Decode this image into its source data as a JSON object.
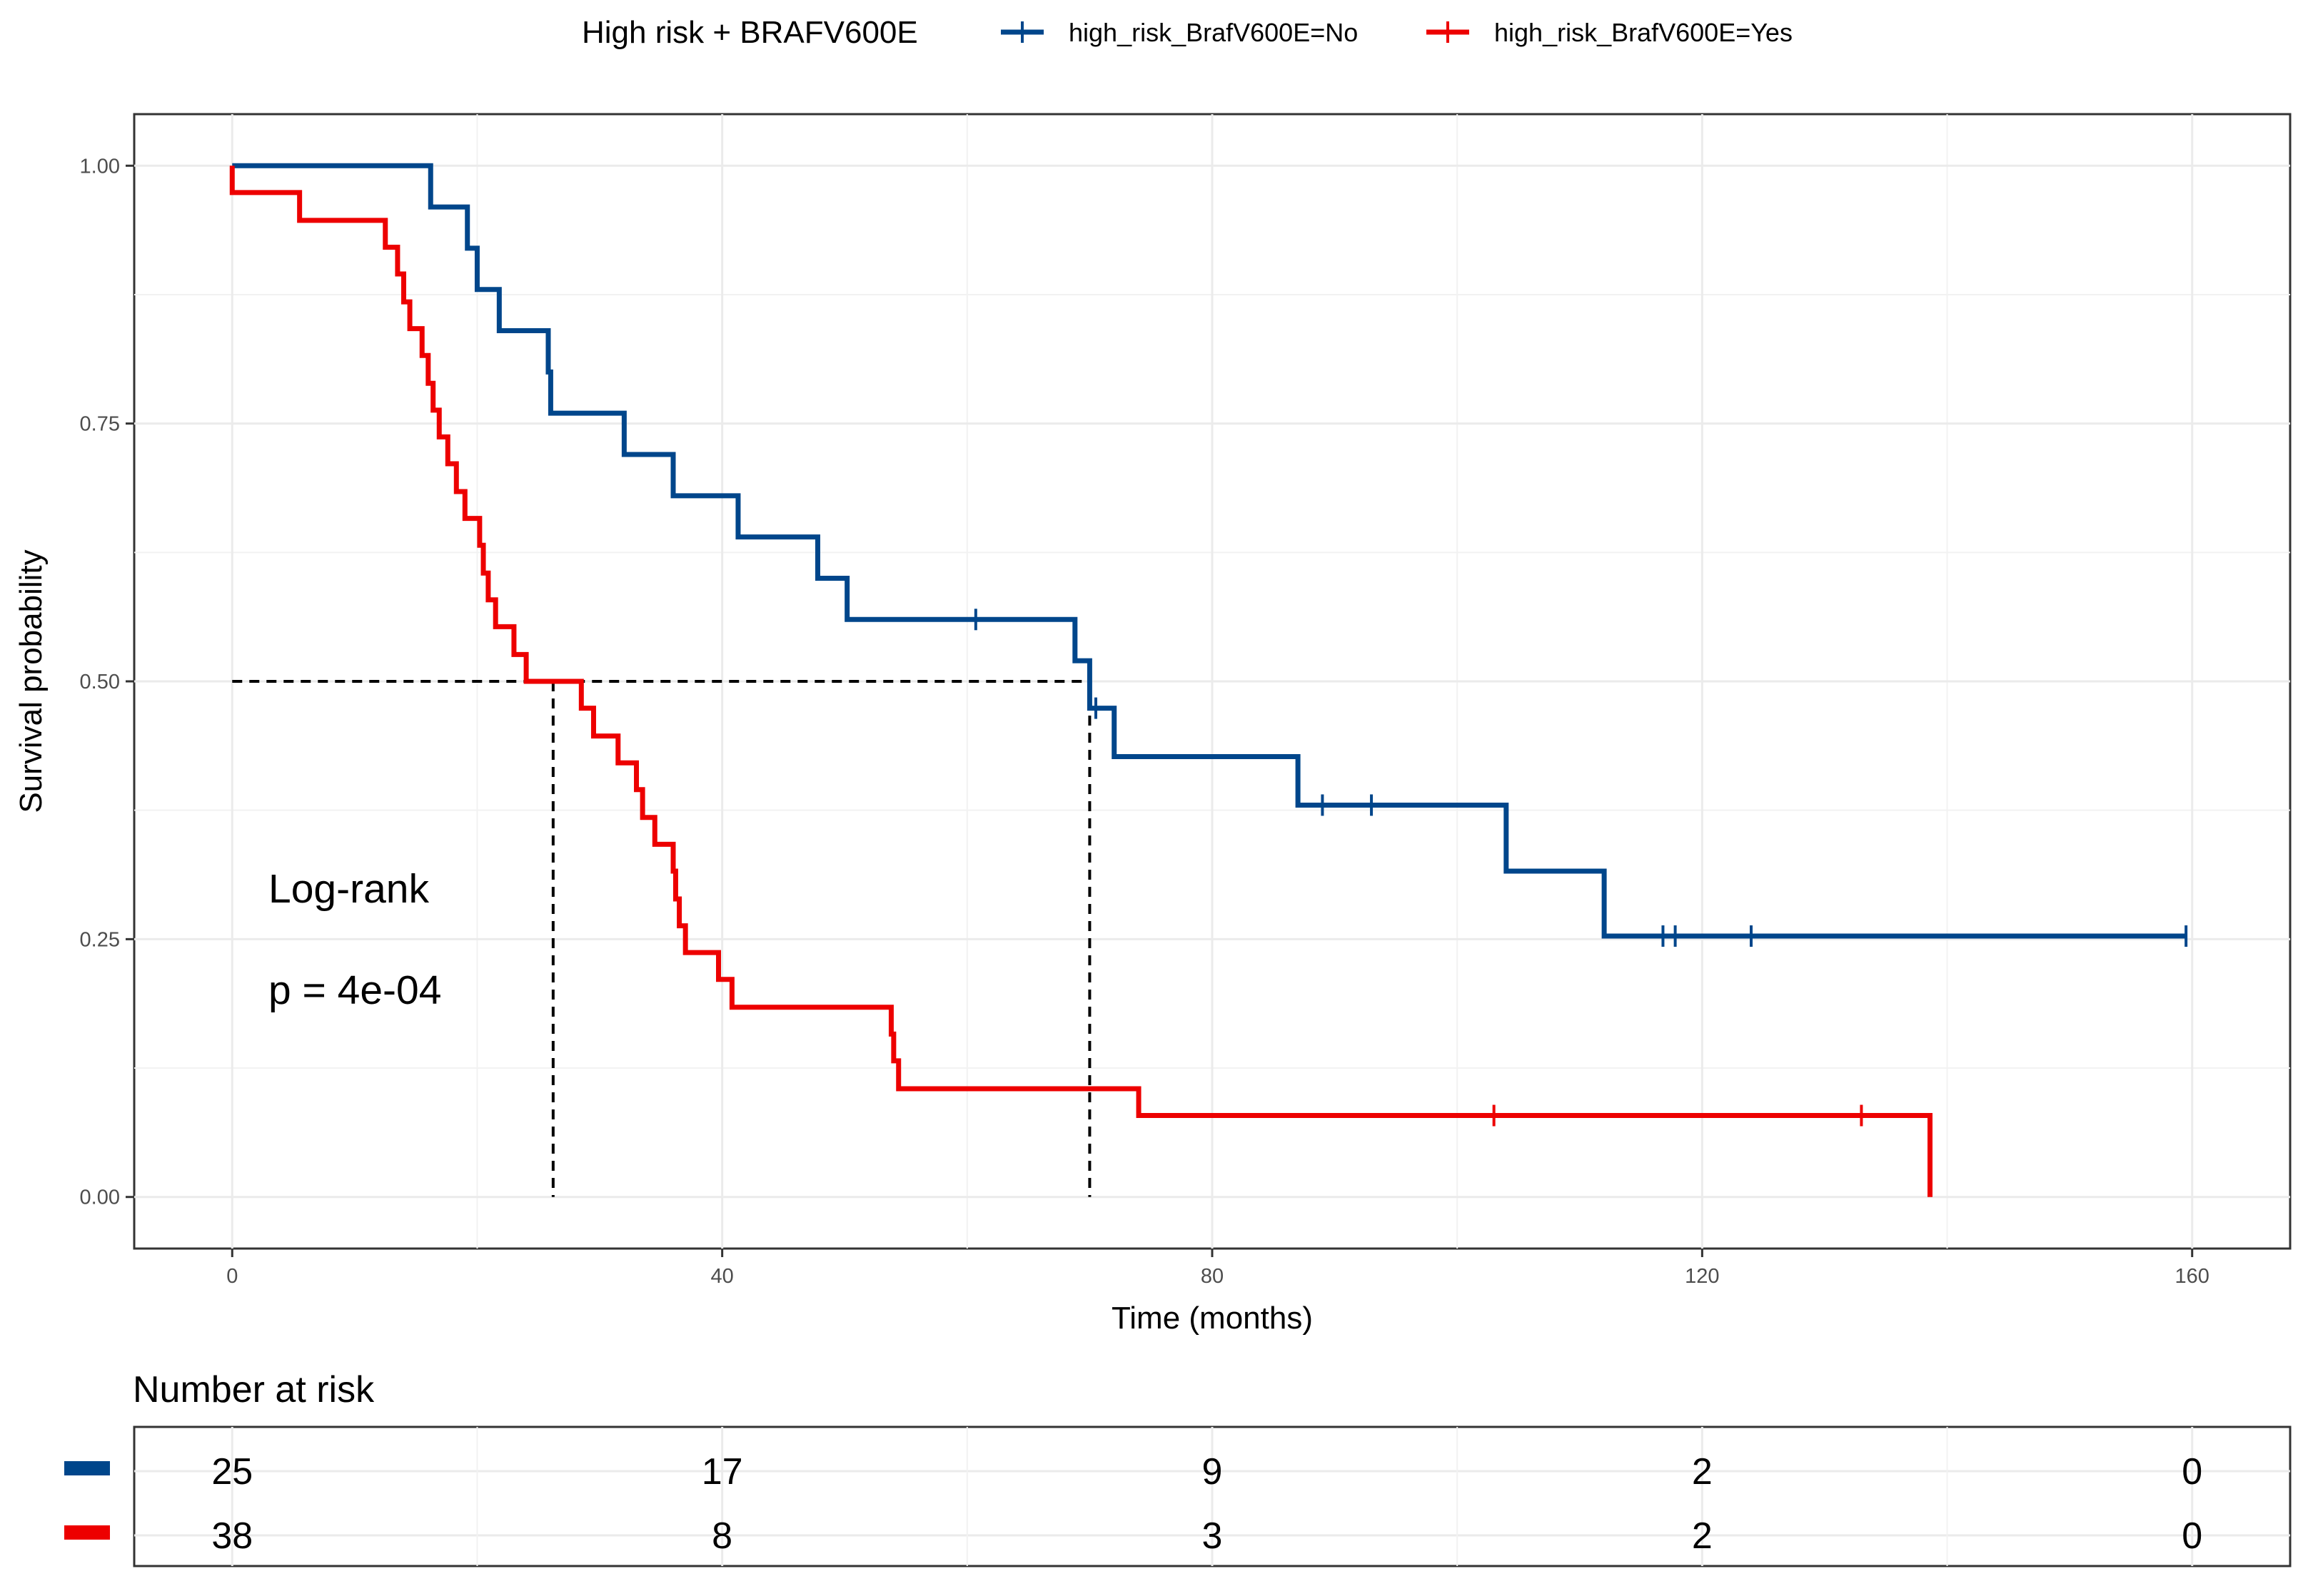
{
  "chart_data": {
    "type": "line",
    "subtype": "kaplan-meier",
    "legend": {
      "title": "High risk + BRAFV600E",
      "position": "top",
      "entries": [
        "high_risk_BrafV600E=No",
        "high_risk_BrafV600E=Yes"
      ]
    },
    "xlabel": "Time (months)",
    "ylabel": "Survival probability",
    "xlim": [
      -8,
      168
    ],
    "ylim": [
      -0.05,
      1.05
    ],
    "x_ticks": [
      0,
      40,
      80,
      120,
      160
    ],
    "x_tick_labels": [
      "0",
      "40",
      "80",
      "120",
      "160"
    ],
    "y_ticks": [
      0,
      0.25,
      0.5,
      0.75,
      1
    ],
    "y_tick_labels": [
      "0.00",
      "0.25",
      "0.50",
      "0.75",
      "1.00"
    ],
    "grid": true,
    "series": [
      {
        "name": "high_risk_BrafV600E=No",
        "color": "#00468B",
        "steps": [
          [
            0,
            1.0
          ],
          [
            16.2,
            0.96
          ],
          [
            19.2,
            0.92
          ],
          [
            20,
            0.88
          ],
          [
            21.8,
            0.84
          ],
          [
            25.8,
            0.8
          ],
          [
            26,
            0.76
          ],
          [
            32,
            0.72
          ],
          [
            36,
            0.68
          ],
          [
            41.3,
            0.64
          ],
          [
            47.8,
            0.6
          ],
          [
            50.2,
            0.56
          ],
          [
            68.8,
            0.52
          ],
          [
            70,
            0.474
          ],
          [
            72,
            0.427
          ],
          [
            87,
            0.38
          ],
          [
            104,
            0.316
          ],
          [
            112,
            0.253
          ],
          [
            159.5,
            0.253
          ]
        ],
        "censor_x": [
          60.7,
          70.5,
          89,
          93,
          116.8,
          117.8,
          124,
          159.5
        ],
        "censor_y": [
          0.56,
          0.474,
          0.38,
          0.38,
          0.253,
          0.253,
          0.253,
          0.253
        ]
      },
      {
        "name": "high_risk_BrafV600E=Yes",
        "color": "#ED0000",
        "steps": [
          [
            0,
            0.974
          ],
          [
            5.5,
            0.947
          ],
          [
            12.5,
            0.921
          ],
          [
            13.5,
            0.895
          ],
          [
            14,
            0.868
          ],
          [
            14.5,
            0.842
          ],
          [
            15.5,
            0.816
          ],
          [
            16,
            0.789
          ],
          [
            16.4,
            0.763
          ],
          [
            16.9,
            0.737
          ],
          [
            17.6,
            0.711
          ],
          [
            18.3,
            0.684
          ],
          [
            19,
            0.658
          ],
          [
            20.2,
            0.632
          ],
          [
            20.5,
            0.605
          ],
          [
            20.9,
            0.579
          ],
          [
            21.5,
            0.553
          ],
          [
            23,
            0.526
          ],
          [
            24,
            0.5
          ],
          [
            28.5,
            0.474
          ],
          [
            29.5,
            0.447
          ],
          [
            31.5,
            0.421
          ],
          [
            33,
            0.395
          ],
          [
            33.5,
            0.368
          ],
          [
            34.5,
            0.342
          ],
          [
            36,
            0.316
          ],
          [
            36.2,
            0.289
          ],
          [
            36.5,
            0.263
          ],
          [
            37,
            0.237
          ],
          [
            39.7,
            0.211
          ],
          [
            40.8,
            0.184
          ],
          [
            53.8,
            0.158
          ],
          [
            54,
            0.132
          ],
          [
            54.4,
            0.105
          ],
          [
            74,
            0.079
          ],
          [
            138.6,
            0.079
          ],
          [
            138.6,
            0.0
          ]
        ],
        "censor_x": [
          103,
          133
        ],
        "censor_y": [
          0.079,
          0.079
        ]
      }
    ],
    "median_lines": {
      "y": 0.5,
      "x_values": [
        26.2,
        70
      ]
    },
    "annotations": [
      "Log-rank",
      "p = 4e-04"
    ],
    "risk_table": {
      "title": "Number at risk",
      "time_points": [
        0,
        40,
        80,
        120,
        160
      ],
      "rows": [
        {
          "series": "high_risk_BrafV600E=No",
          "color": "#00468B",
          "values": [
            "25",
            "17",
            "9",
            "2",
            "0"
          ]
        },
        {
          "series": "high_risk_BrafV600E=Yes",
          "color": "#ED0000",
          "values": [
            "38",
            "8",
            "3",
            "2",
            "0"
          ]
        }
      ]
    }
  }
}
